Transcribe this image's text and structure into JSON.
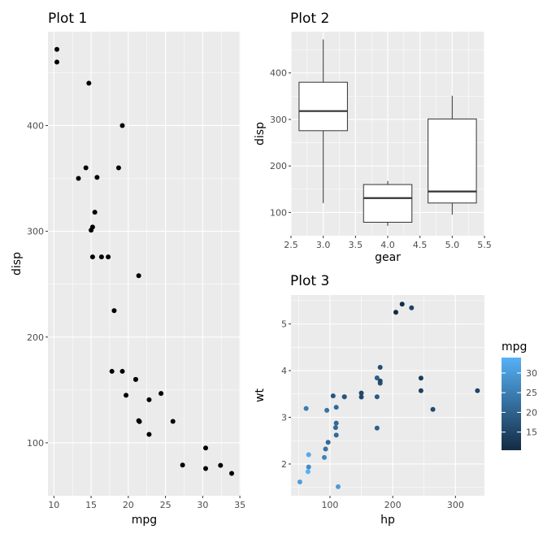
{
  "plots": [
    {
      "title": "Plot 1",
      "chart_data": {
        "type": "scatter",
        "xlabel": "mpg",
        "ylabel": "disp",
        "xlim": [
          9.2,
          35.1
        ],
        "ylim": [
          50.0,
          488.7
        ],
        "x_ticks": [
          10,
          15,
          20,
          25,
          30,
          35
        ],
        "y_ticks": [
          100,
          200,
          300,
          400
        ],
        "x_tick_labels": [
          "10",
          "15",
          "20",
          "25",
          "30",
          "35"
        ],
        "y_tick_labels": [
          "100",
          "200",
          "300",
          "400"
        ],
        "points": [
          {
            "x": 21.0,
            "y": 160.0
          },
          {
            "x": 21.0,
            "y": 160.0
          },
          {
            "x": 22.8,
            "y": 108.0
          },
          {
            "x": 21.4,
            "y": 258.0
          },
          {
            "x": 18.7,
            "y": 360.0
          },
          {
            "x": 18.1,
            "y": 225.0
          },
          {
            "x": 14.3,
            "y": 360.0
          },
          {
            "x": 24.4,
            "y": 146.7
          },
          {
            "x": 22.8,
            "y": 140.8
          },
          {
            "x": 19.2,
            "y": 167.6
          },
          {
            "x": 17.8,
            "y": 167.6
          },
          {
            "x": 16.4,
            "y": 275.8
          },
          {
            "x": 17.3,
            "y": 275.8
          },
          {
            "x": 15.2,
            "y": 275.8
          },
          {
            "x": 10.4,
            "y": 472.0
          },
          {
            "x": 10.4,
            "y": 460.0
          },
          {
            "x": 14.7,
            "y": 440.0
          },
          {
            "x": 32.4,
            "y": 78.7
          },
          {
            "x": 30.4,
            "y": 75.7
          },
          {
            "x": 33.9,
            "y": 71.1
          },
          {
            "x": 21.5,
            "y": 120.1
          },
          {
            "x": 15.5,
            "y": 318.0
          },
          {
            "x": 15.2,
            "y": 304.0
          },
          {
            "x": 13.3,
            "y": 350.0
          },
          {
            "x": 19.2,
            "y": 400.0
          },
          {
            "x": 27.3,
            "y": 79.0
          },
          {
            "x": 26.0,
            "y": 120.3
          },
          {
            "x": 30.4,
            "y": 95.1
          },
          {
            "x": 15.8,
            "y": 351.0
          },
          {
            "x": 19.7,
            "y": 145.0
          },
          {
            "x": 15.0,
            "y": 301.0
          },
          {
            "x": 21.4,
            "y": 121.0
          }
        ]
      }
    },
    {
      "title": "Plot 2",
      "chart_data": {
        "type": "box",
        "xlabel": "gear",
        "ylabel": "disp",
        "xlim": [
          2.5,
          5.5
        ],
        "ylim": [
          50.0,
          488.7
        ],
        "x_ticks": [
          2.5,
          3.0,
          3.5,
          4.0,
          4.5,
          5.0,
          5.5
        ],
        "y_ticks": [
          100,
          200,
          300,
          400
        ],
        "x_tick_labels": [
          "2.5",
          "3.0",
          "3.5",
          "4.0",
          "4.5",
          "5.0",
          "5.5"
        ],
        "y_tick_labels": [
          "100",
          "200",
          "300",
          "400"
        ],
        "box_width": 0.75,
        "boxes": [
          {
            "x": 3,
            "min": 120.1,
            "q1": 275.8,
            "median": 318.0,
            "q3": 380.0,
            "max": 472.0
          },
          {
            "x": 4,
            "min": 71.1,
            "q1": 78.9,
            "median": 130.9,
            "q3": 160.0,
            "max": 167.6
          },
          {
            "x": 5,
            "min": 95.1,
            "q1": 120.3,
            "median": 145.0,
            "q3": 301.0,
            "max": 351.0
          }
        ]
      }
    },
    {
      "title": "Plot 3",
      "chart_data": {
        "type": "scatter",
        "xlabel": "hp",
        "ylabel": "wt",
        "xlim": [
          37.9,
          346.2
        ],
        "ylim": [
          1.32,
          5.62
        ],
        "x_ticks": [
          100,
          200,
          300
        ],
        "y_ticks": [
          2,
          3,
          4,
          5
        ],
        "x_tick_labels": [
          "100",
          "200",
          "300"
        ],
        "y_tick_labels": [
          "2",
          "3",
          "4",
          "5"
        ],
        "color_scale": {
          "title": "mpg",
          "low_color": "#132B43",
          "high_color": "#56B1F7",
          "range": [
            10.4,
            33.9
          ],
          "breaks": [
            15,
            20,
            25,
            30
          ],
          "break_labels": [
            "15",
            "20",
            "25",
            "30"
          ]
        },
        "points": [
          {
            "x": 110,
            "y": 2.62,
            "mpg": 21.0
          },
          {
            "x": 110,
            "y": 2.875,
            "mpg": 21.0
          },
          {
            "x": 93,
            "y": 2.32,
            "mpg": 22.8
          },
          {
            "x": 110,
            "y": 3.215,
            "mpg": 21.4
          },
          {
            "x": 175,
            "y": 3.44,
            "mpg": 18.7
          },
          {
            "x": 105,
            "y": 3.46,
            "mpg": 18.1
          },
          {
            "x": 245,
            "y": 3.57,
            "mpg": 14.3
          },
          {
            "x": 62,
            "y": 3.19,
            "mpg": 24.4
          },
          {
            "x": 95,
            "y": 3.15,
            "mpg": 22.8
          },
          {
            "x": 123,
            "y": 3.44,
            "mpg": 19.2
          },
          {
            "x": 123,
            "y": 3.44,
            "mpg": 17.8
          },
          {
            "x": 180,
            "y": 4.07,
            "mpg": 16.4
          },
          {
            "x": 180,
            "y": 3.73,
            "mpg": 17.3
          },
          {
            "x": 180,
            "y": 3.78,
            "mpg": 15.2
          },
          {
            "x": 205,
            "y": 5.25,
            "mpg": 10.4
          },
          {
            "x": 215,
            "y": 5.424,
            "mpg": 10.4
          },
          {
            "x": 230,
            "y": 5.345,
            "mpg": 14.7
          },
          {
            "x": 66,
            "y": 2.2,
            "mpg": 32.4
          },
          {
            "x": 52,
            "y": 1.615,
            "mpg": 30.4
          },
          {
            "x": 65,
            "y": 1.835,
            "mpg": 33.9
          },
          {
            "x": 97,
            "y": 2.465,
            "mpg": 21.5
          },
          {
            "x": 150,
            "y": 3.52,
            "mpg": 15.5
          },
          {
            "x": 150,
            "y": 3.435,
            "mpg": 15.2
          },
          {
            "x": 245,
            "y": 3.84,
            "mpg": 13.3
          },
          {
            "x": 175,
            "y": 3.845,
            "mpg": 19.2
          },
          {
            "x": 66,
            "y": 1.935,
            "mpg": 27.3
          },
          {
            "x": 91,
            "y": 2.14,
            "mpg": 26.0
          },
          {
            "x": 113,
            "y": 1.513,
            "mpg": 30.4
          },
          {
            "x": 264,
            "y": 3.17,
            "mpg": 15.8
          },
          {
            "x": 175,
            "y": 2.77,
            "mpg": 19.7
          },
          {
            "x": 335,
            "y": 3.57,
            "mpg": 15.0
          },
          {
            "x": 109,
            "y": 2.78,
            "mpg": 21.4
          }
        ]
      }
    }
  ]
}
